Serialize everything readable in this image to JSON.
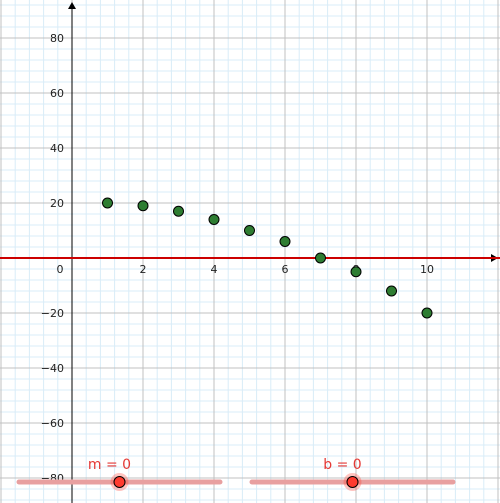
{
  "chart_data": {
    "type": "scatter",
    "xlim": [
      -2,
      12
    ],
    "ylim": [
      -85,
      90
    ],
    "x_ticks": [
      "2",
      "4",
      "6",
      "8",
      "10"
    ],
    "y_ticks": [
      "80",
      "60",
      "40",
      "20",
      "-20",
      "-40",
      "-60",
      "-80"
    ],
    "origin_label": "0",
    "grid": "on",
    "points": [
      {
        "x": 1,
        "y": 20
      },
      {
        "x": 2,
        "y": 19
      },
      {
        "x": 3,
        "y": 17
      },
      {
        "x": 4,
        "y": 14
      },
      {
        "x": 5,
        "y": 10
      },
      {
        "x": 6,
        "y": 6
      },
      {
        "x": 7,
        "y": 0
      },
      {
        "x": 8,
        "y": -5
      },
      {
        "x": 9,
        "y": -12
      },
      {
        "x": 10,
        "y": -20
      }
    ],
    "line": {
      "m": 0,
      "b": 0
    }
  },
  "sliders": {
    "m": {
      "label": "m = 0",
      "value": 0,
      "min": -5,
      "max": 5
    },
    "b": {
      "label": "b = 0",
      "value": 0,
      "min": -5,
      "max": 5
    }
  },
  "colors": {
    "point_fill": "#2e7d32",
    "point_stroke": "#000000",
    "line": "#cc0000",
    "slider_track": "#e8a0a0",
    "slider_handle": "#ff3b2f",
    "label": "#e53935",
    "axis": "#000000",
    "grid_major": "#c0c0c0",
    "grid_minor": "#d9ecf8"
  }
}
